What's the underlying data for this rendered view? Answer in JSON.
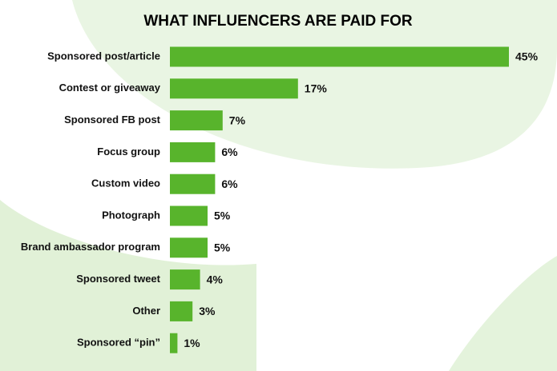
{
  "chart_data": {
    "type": "bar",
    "orientation": "horizontal",
    "title": "WHAT INFLUENCERS ARE PAID FOR",
    "categories": [
      "Sponsored post/article",
      "Contest or giveaway",
      "Sponsored FB post",
      "Focus group",
      "Custom video",
      "Photograph",
      "Brand ambassador program",
      "Sponsored tweet",
      "Other",
      "Sponsored “pin”"
    ],
    "values": [
      45,
      17,
      7,
      6,
      6,
      5,
      5,
      4,
      3,
      1
    ],
    "value_labels": [
      "45%",
      "17%",
      "7%",
      "6%",
      "6%",
      "5%",
      "5%",
      "4%",
      "3%",
      "1%"
    ],
    "color": "#58b42c"
  }
}
